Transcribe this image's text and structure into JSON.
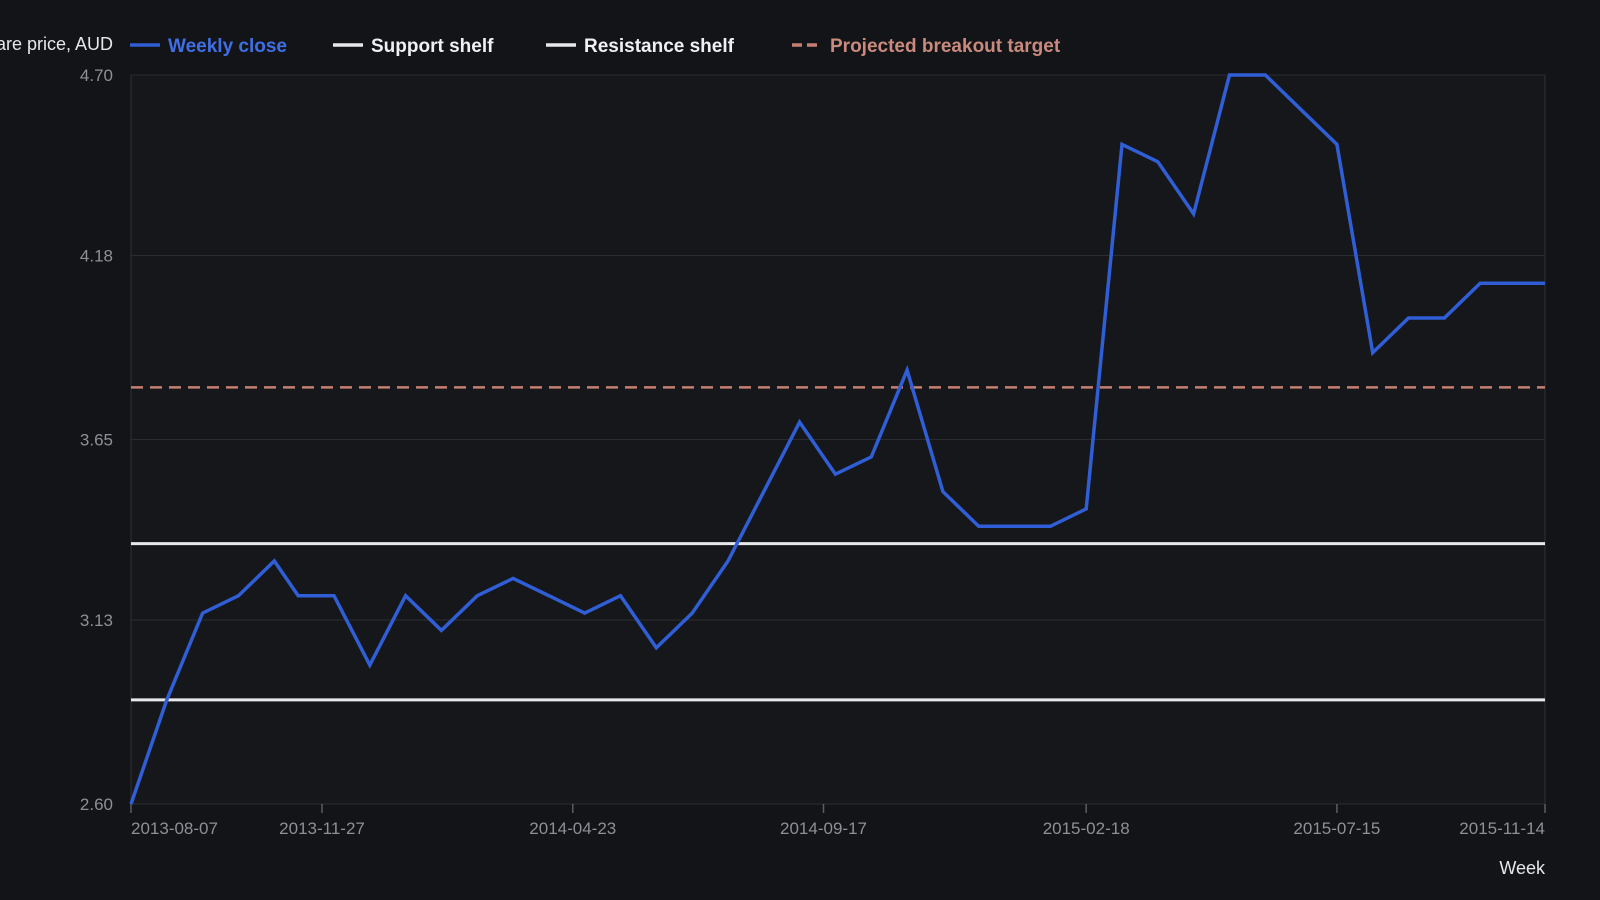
{
  "chart_data": {
    "type": "line",
    "title": "",
    "ylabel": "Share price, AUD",
    "xlabel": "Week",
    "ylim": [
      2.6,
      4.7
    ],
    "y_ticks": [
      "2.60",
      "3.13",
      "3.65",
      "4.18",
      "4.70"
    ],
    "x_range": [
      "2013-08-07",
      "2015-11-14"
    ],
    "x_ticks": [
      "2013-08-07",
      "2013-11-27",
      "2014-04-23",
      "2014-09-17",
      "2015-02-18",
      "2015-07-15",
      "2015-11-14"
    ],
    "grid": true,
    "legend_position": "top",
    "series": [
      {
        "name": "Weekly close",
        "color": "#2f5ed6",
        "style": "solid",
        "x": [
          "2013-08-07",
          "2013-08-28",
          "2013-09-18",
          "2013-10-09",
          "2013-10-30",
          "2013-11-13",
          "2013-12-04",
          "2013-12-25",
          "2014-01-15",
          "2014-02-05",
          "2014-02-26",
          "2014-03-19",
          "2014-04-09",
          "2014-04-30",
          "2014-05-21",
          "2014-06-11",
          "2014-07-02",
          "2014-07-23",
          "2014-08-13",
          "2014-09-03",
          "2014-09-24",
          "2014-10-15",
          "2014-11-05",
          "2014-11-26",
          "2014-12-17",
          "2015-01-07",
          "2015-01-28",
          "2015-02-18",
          "2015-03-11",
          "2015-04-01",
          "2015-04-22",
          "2015-05-13",
          "2015-06-03",
          "2015-06-24",
          "2015-07-15",
          "2015-08-05",
          "2015-08-26",
          "2015-09-16",
          "2015-10-07",
          "2015-10-28",
          "2015-11-14"
        ],
        "values": [
          2.6,
          2.9,
          3.15,
          3.2,
          3.3,
          3.2,
          3.2,
          3.0,
          3.2,
          3.1,
          3.2,
          3.25,
          3.2,
          3.15,
          3.2,
          3.05,
          3.15,
          3.3,
          3.5,
          3.7,
          3.55,
          3.6,
          3.85,
          3.5,
          3.4,
          3.4,
          3.4,
          3.45,
          4.5,
          4.45,
          4.3,
          4.7,
          4.7,
          4.6,
          4.5,
          3.9,
          4.0,
          4.0,
          4.1,
          4.1,
          4.1
        ]
      },
      {
        "name": "Support shelf",
        "color": "#e8e8ea",
        "style": "solid",
        "value": 2.9
      },
      {
        "name": "Resistance shelf",
        "color": "#e8e8ea",
        "style": "solid",
        "value": 3.35
      },
      {
        "name": "Projected breakout target",
        "color": "#c47f72",
        "style": "dashed",
        "value": 3.8
      }
    ]
  }
}
